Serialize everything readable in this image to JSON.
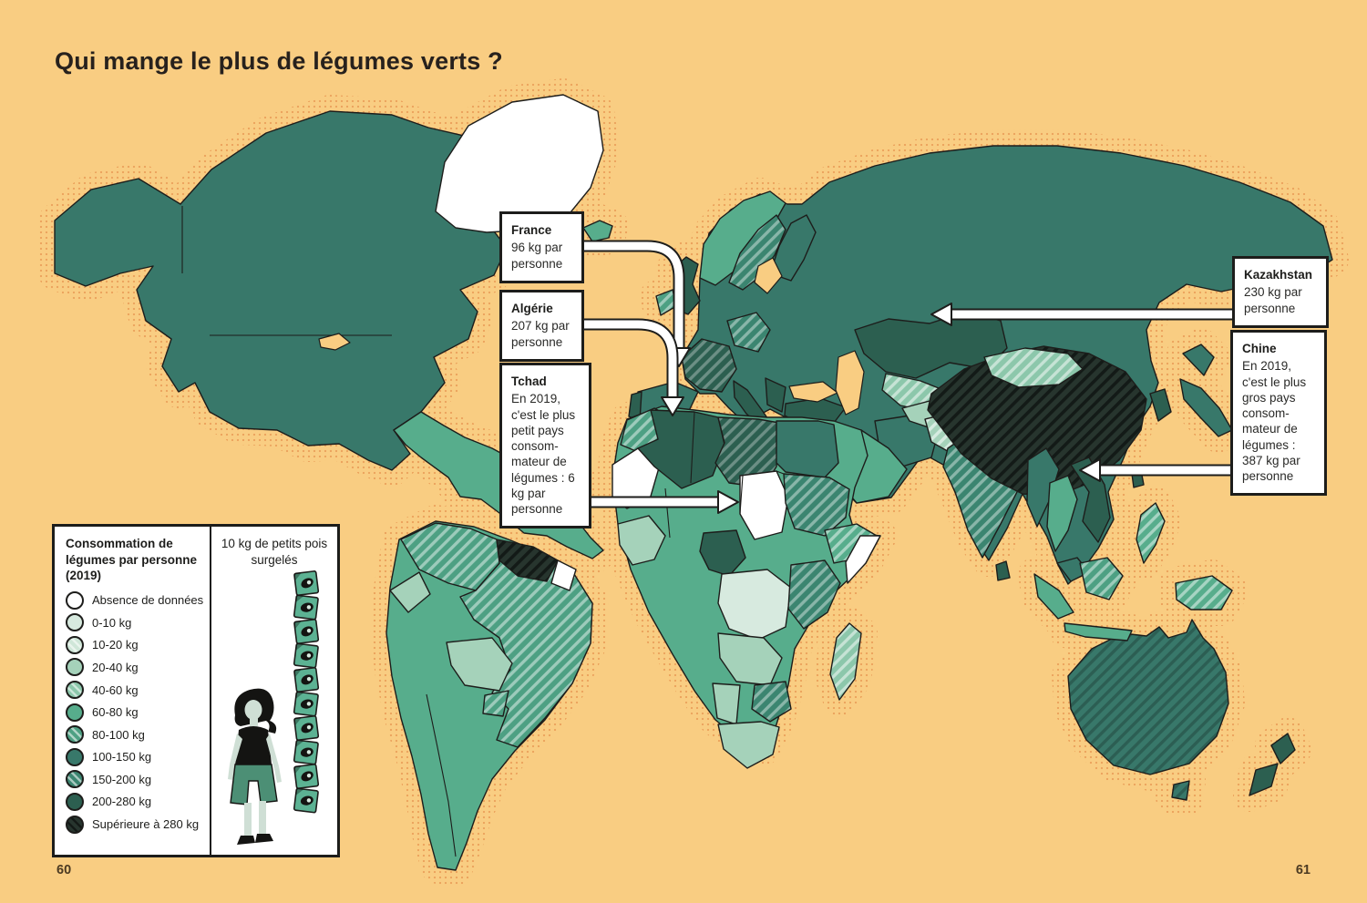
{
  "page": {
    "title": "Qui mange le plus de légumes verts ?",
    "page_number_left": "60",
    "page_number_right": "61"
  },
  "palette": {
    "bg": "#f9cd82",
    "halo_dot": "#eba25c",
    "ink": "#1d1d1b",
    "box_bg": "#ffffff",
    "absence": "#ffffff",
    "c0_10": "#d7eadf",
    "c10_20": "#cfe6d8",
    "c20_40": "#a5d2ba",
    "c40_60": "#8cc7ab",
    "c60_80": "#57ad8c",
    "c80_100": "#4da083",
    "c100_150": "#38786a",
    "c150_200": "#3b8570",
    "c200_280": "#2c5f50",
    "c280plus": "#27352e",
    "skin": "#cfdfd5",
    "person_bottoms": "#4c8f75",
    "bag_green": "#5cb293",
    "bag_pea": "#d7eadf"
  },
  "callouts": [
    {
      "id": "france",
      "title": "France",
      "body": "96 kg par personne"
    },
    {
      "id": "algerie",
      "title": "Algérie",
      "body": "207 kg par personne"
    },
    {
      "id": "tchad",
      "title": "Tchad",
      "body": "En 2019, c'est le plus petit pays consom­mateur de légumes : 6 kg par personne"
    },
    {
      "id": "kazakhstan",
      "title": "Kazakhstan",
      "body": "230 kg par personne"
    },
    {
      "id": "chine",
      "title": "Chine",
      "body": "En 2019, c'est le plus gros pays consom­mateur de légumes : 387 kg par personne"
    }
  ],
  "legend": {
    "title": "Consommation de légumes par personne (2019)",
    "items": [
      {
        "label": "Absence de données",
        "color": "absence",
        "hatch": "none"
      },
      {
        "label": "0-10 kg",
        "color": "c0_10",
        "hatch": "none"
      },
      {
        "label": "10-20 kg",
        "color": "c10_20",
        "hatch": "light"
      },
      {
        "label": "20-40 kg",
        "color": "c20_40",
        "hatch": "none"
      },
      {
        "label": "40-60 kg",
        "color": "c40_60",
        "hatch": "light"
      },
      {
        "label": "60-80 kg",
        "color": "c60_80",
        "hatch": "none"
      },
      {
        "label": "80-100 kg",
        "color": "c80_100",
        "hatch": "light"
      },
      {
        "label": "100-150 kg",
        "color": "c100_150",
        "hatch": "none"
      },
      {
        "label": "150-200 kg",
        "color": "c150_200",
        "hatch": "light"
      },
      {
        "label": "200-280 kg",
        "color": "c200_280",
        "hatch": "none"
      },
      {
        "label": "Supérieure à 280 kg",
        "color": "c280plus",
        "hatch": "dark"
      }
    ]
  },
  "scale_panel": {
    "caption": "10 kg de petits pois surgelés",
    "bag_count": 10
  }
}
